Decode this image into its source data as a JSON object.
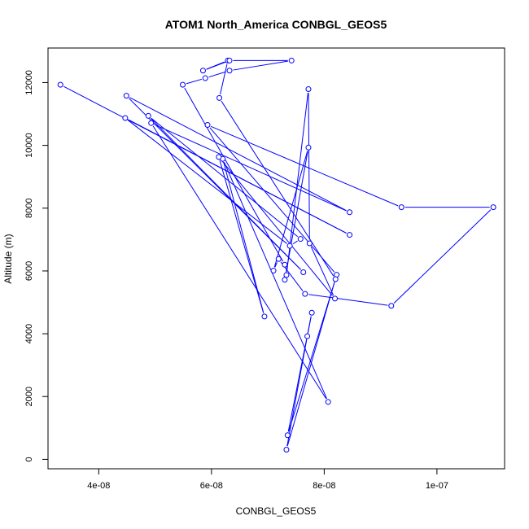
{
  "chart_data": {
    "type": "line",
    "title": "ATOM1 North_America CONBGL_GEOS5",
    "xlabel": "CONBGL_GEOS5",
    "ylabel": "Altitude (m)",
    "xlim": [
      3.1e-08,
      1.12e-07
    ],
    "ylim": [
      -300,
      13100
    ],
    "xticks": [
      4e-08,
      6e-08,
      8e-08,
      1e-07
    ],
    "xtick_labels": [
      "4e-08",
      "6e-08",
      "8e-08",
      "1e-07"
    ],
    "yticks": [
      0,
      2000,
      4000,
      6000,
      8000,
      10000,
      12000
    ],
    "ytick_labels": [
      "0",
      "2000",
      "4000",
      "6000",
      "8000",
      "10000",
      "12000"
    ],
    "grid": false,
    "series": [
      {
        "color": "#0000ff",
        "x": [
          3.32e-08,
          8.45e-08,
          4.47e-08,
          7.39e-08,
          7.58e-08,
          4.88e-08,
          7.63e-08,
          4.49e-08,
          8.45e-08,
          4.93e-08,
          8.07e-08,
          6.2e-08,
          6.94e-08,
          6.13e-08,
          8.19e-08,
          7.74e-08,
          7.72e-08,
          7.33e-08,
          7.3e-08,
          7.72e-08,
          7.1e-08,
          7.19e-08,
          7.66e-08,
          9.19e-08,
          1.1e-07,
          9.37e-08,
          5.93e-08,
          8.22e-08,
          7.33e-08,
          7.7e-08,
          7.78e-08,
          7.35e-08,
          8.2e-08,
          6.14e-08,
          6.29e-08,
          5.85e-08,
          6.32e-08,
          7.42e-08,
          6.32e-08,
          5.89e-08,
          5.49e-08,
          7.3e-08
        ],
        "y": [
          11930,
          7150,
          10870,
          6800,
          7020,
          10940,
          5960,
          11580,
          7870,
          10710,
          1830,
          9570,
          4550,
          9630,
          5120,
          6880,
          11790,
          5870,
          5720,
          9930,
          6010,
          6380,
          5270,
          4890,
          8030,
          8030,
          10650,
          5880,
          310,
          3920,
          4670,
          770,
          5740,
          11510,
          12700,
          12380,
          12700,
          12700,
          12380,
          12140,
          11930,
          6200
        ]
      }
    ]
  }
}
